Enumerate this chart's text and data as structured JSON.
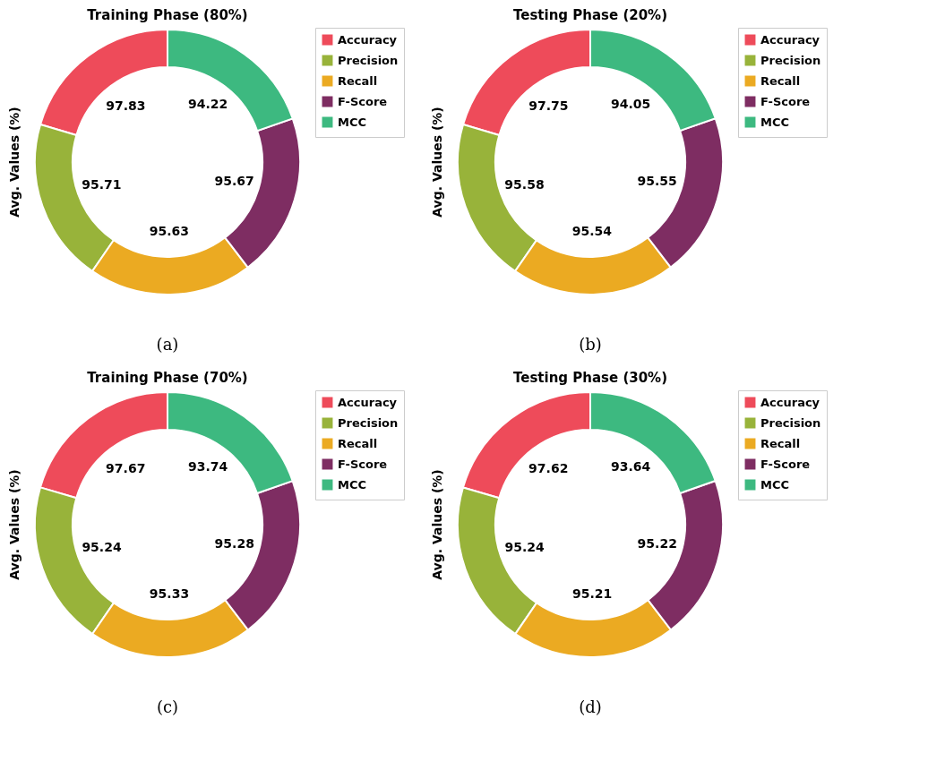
{
  "chart_data": [
    {
      "type": "donut",
      "title": "Training Phase (80%)",
      "ylabel": "Avg. Values (%)",
      "categories": [
        "Accuracy",
        "Precision",
        "Recall",
        "F-Score",
        "MCC"
      ],
      "values": [
        97.83,
        95.71,
        95.63,
        95.67,
        94.22
      ],
      "colors": [
        "#ee4b5a",
        "#98b33a",
        "#ebaa22",
        "#7e2d62",
        "#3db980"
      ],
      "data_labels": true,
      "legend": "top right",
      "annotations": [
        "(a)"
      ]
    },
    {
      "type": "donut",
      "title": "Testing Phase (20%)",
      "ylabel": "Avg. Values (%)",
      "categories": [
        "Accuracy",
        "Precision",
        "Recall",
        "F-Score",
        "MCC"
      ],
      "values": [
        97.75,
        95.58,
        95.54,
        95.55,
        94.05
      ],
      "colors": [
        "#ee4b5a",
        "#98b33a",
        "#ebaa22",
        "#7e2d62",
        "#3db980"
      ],
      "data_labels": true,
      "legend": "top right",
      "annotations": [
        "(b)"
      ]
    },
    {
      "type": "donut",
      "title": "Training Phase (70%)",
      "ylabel": "Avg. Values (%)",
      "categories": [
        "Accuracy",
        "Precision",
        "Recall",
        "F-Score",
        "MCC"
      ],
      "values": [
        97.67,
        95.24,
        95.33,
        95.28,
        93.74
      ],
      "colors": [
        "#ee4b5a",
        "#98b33a",
        "#ebaa22",
        "#7e2d62",
        "#3db980"
      ],
      "data_labels": true,
      "legend": "top right",
      "annotations": [
        "(c)"
      ]
    },
    {
      "type": "donut",
      "title": "Testing Phase (30%)",
      "ylabel": "Avg. Values (%)",
      "categories": [
        "Accuracy",
        "Precision",
        "Recall",
        "F-Score",
        "MCC"
      ],
      "values": [
        97.62,
        95.24,
        95.21,
        95.22,
        93.64
      ],
      "colors": [
        "#ee4b5a",
        "#98b33a",
        "#ebaa22",
        "#7e2d62",
        "#3db980"
      ],
      "data_labels": true,
      "legend": "top right",
      "annotations": [
        "(d)"
      ]
    }
  ]
}
